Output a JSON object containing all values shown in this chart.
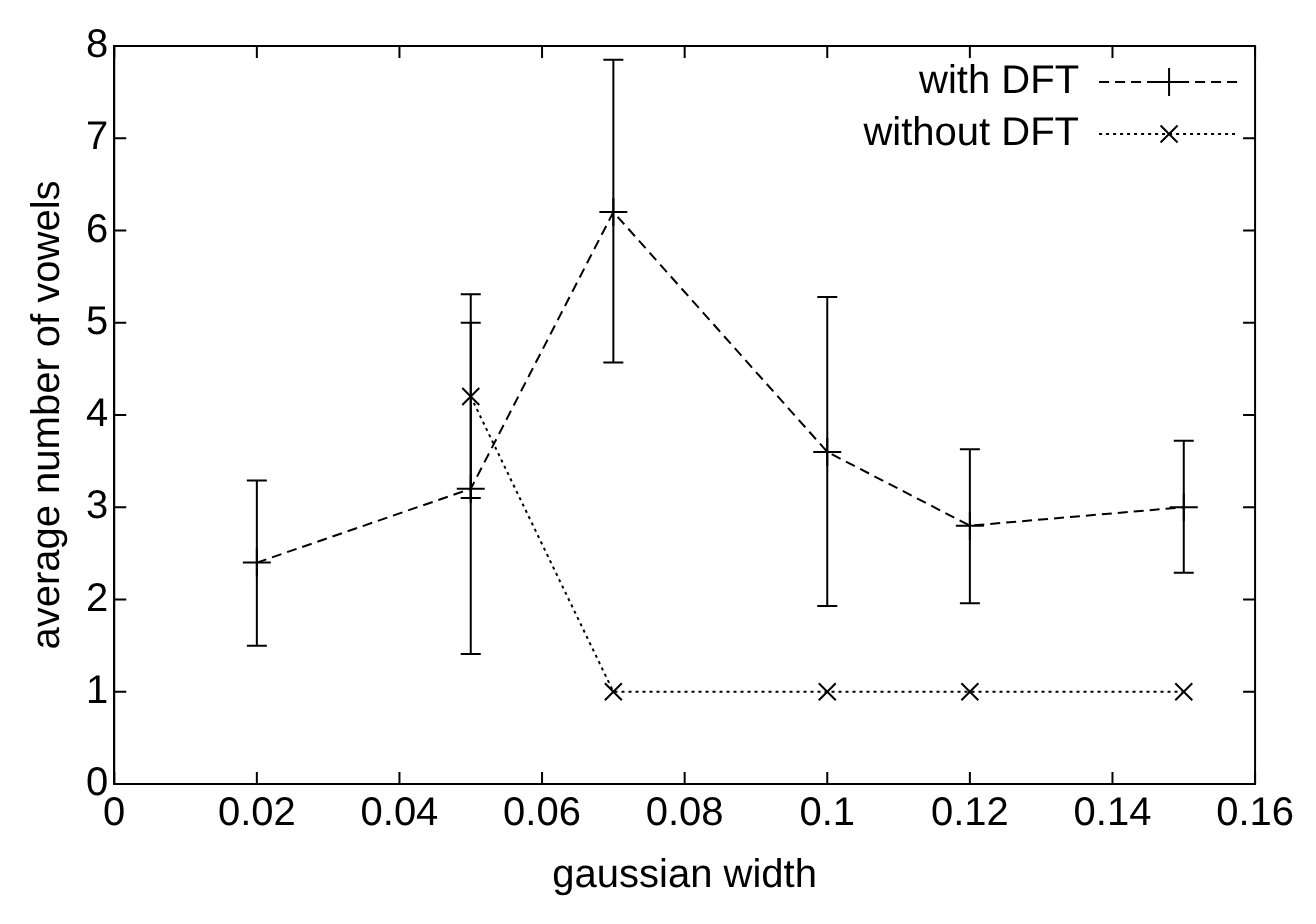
{
  "chart_data": {
    "type": "line",
    "xlabel": "gaussian width",
    "ylabel": "average number of vowels",
    "x": [
      0.02,
      0.05,
      0.07,
      0.1,
      0.12,
      0.15
    ],
    "series": [
      {
        "name": "with DFT",
        "color": "#000000",
        "values": [
          2.4,
          3.2,
          6.2,
          3.6,
          2.8,
          3.0
        ],
        "errors": [
          [
            1.5,
            3.29
          ],
          [
            1.41,
            5.0
          ],
          [
            4.57,
            7.85
          ],
          [
            1.93,
            5.28
          ],
          [
            1.96,
            3.63
          ],
          [
            2.29,
            3.72
          ]
        ],
        "line_style": "dashed",
        "marker": "cross"
      },
      {
        "name": "without DFT",
        "color": "#000000",
        "x": [
          0.05,
          0.07,
          0.1,
          0.12,
          0.15
        ],
        "values": [
          4.2,
          1,
          1,
          1,
          1
        ],
        "errors": [
          [
            3.1,
            5.31
          ],
          null,
          null,
          null,
          null
        ],
        "line_style": "dotted",
        "marker": "cross"
      }
    ],
    "xlim": [
      0,
      0.16
    ],
    "xticks": [
      0,
      0.02,
      0.04,
      0.06,
      0.08,
      0.1,
      0.12,
      0.14,
      0.16
    ],
    "ylim": [
      0,
      8
    ],
    "yticks": [
      0,
      1,
      2,
      3,
      4,
      5,
      6,
      7,
      8
    ],
    "grid": false,
    "legend": "top right"
  }
}
